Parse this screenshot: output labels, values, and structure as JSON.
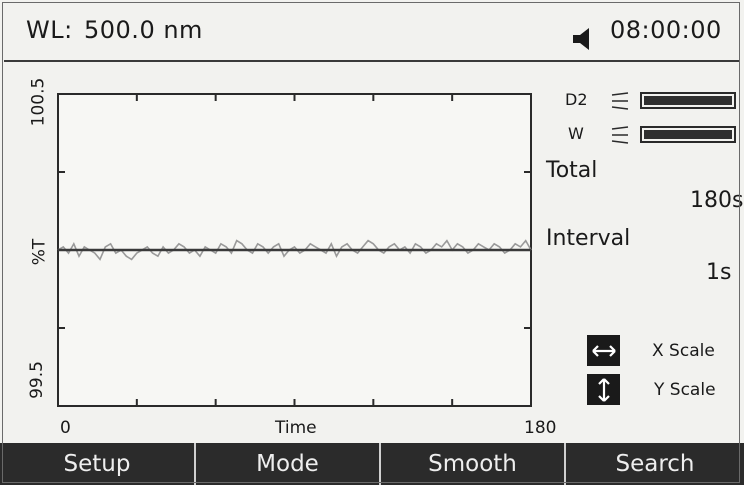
{
  "header": {
    "wl_label": "WL:",
    "wl_value": "500.0 nm",
    "time": "08:00:00"
  },
  "plot": {
    "y_max_label": "100.5",
    "y_mid_label": "%T",
    "y_min_label": "99.5",
    "x_min_label": "0",
    "x_axis_title": "Time",
    "x_max_label": "180"
  },
  "chart_data": {
    "type": "line",
    "xlabel": "Time",
    "ylabel": "%T",
    "xlim": [
      0,
      180
    ],
    "ylim": [
      99.5,
      100.5
    ],
    "series": [
      {
        "values": [
          100.0,
          100.01,
          99.99,
          100.02,
          99.98,
          100.01,
          100.0,
          99.99,
          99.97,
          100.01,
          100.02,
          99.99,
          100.0,
          99.98,
          99.97,
          99.99,
          100.0,
          100.01,
          99.99,
          99.98,
          100.01,
          99.99,
          100.0,
          100.02,
          100.01,
          99.99,
          100.0,
          99.98,
          100.01,
          100.0,
          99.99,
          100.02,
          100.01,
          99.99,
          100.03,
          100.02,
          100.0,
          99.99,
          100.02,
          100.01,
          99.99,
          100.01,
          100.02,
          99.98,
          100.0,
          100.01,
          99.99,
          100.0,
          100.02,
          100.01,
          100.0,
          99.99,
          100.02,
          99.98,
          100.01,
          100.02,
          100.0,
          99.99,
          100.01,
          100.03,
          100.02,
          100.0,
          99.99,
          100.01,
          100.02,
          100.0,
          100.01,
          99.99,
          100.02,
          100.01,
          99.99,
          100.0,
          100.02,
          100.01,
          100.03,
          100.0,
          100.02,
          100.01,
          99.99,
          100.0,
          100.02,
          100.01,
          100.0,
          100.02,
          100.01,
          99.99,
          100.0,
          100.02,
          100.01,
          100.03,
          100.0
        ]
      },
      {
        "values": [
          100.0,
          100.0
        ]
      }
    ]
  },
  "lamps": {
    "d2_label": "D2",
    "w_label": "W",
    "d2_level": 1.0,
    "w_level": 1.0
  },
  "params": {
    "total_label": "Total",
    "total_value": "180s",
    "interval_label": "Interval",
    "interval_value": "1s"
  },
  "scales": {
    "x_label": "X Scale",
    "y_label": "Y Scale"
  },
  "softkeys": [
    "Setup",
    "Mode",
    "Smooth",
    "Search"
  ],
  "icons": {
    "speaker": "speaker-icon",
    "x_scale": "horizontal-arrows-icon",
    "y_scale": "vertical-arrows-icon"
  }
}
